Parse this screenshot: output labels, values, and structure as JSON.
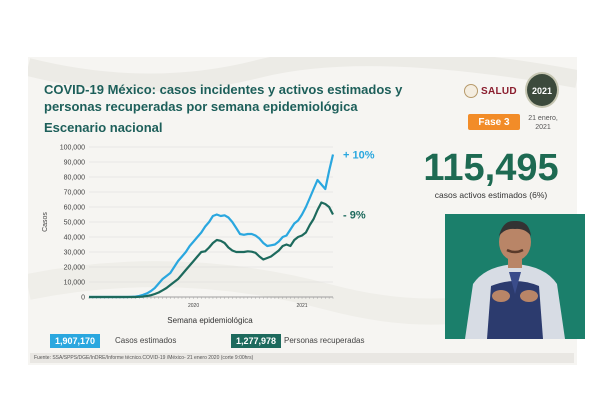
{
  "slide": {
    "title": "COVID-19 México: casos incidentes y activos estimados y personas recuperadas por semana epidemiológica",
    "subtitle": "Escenario nacional",
    "logo_salud": "SALUD",
    "logo_year": "2021",
    "phase_label": "Fase 3",
    "date": "21 enero, 2021",
    "active_cases_number": "115,495",
    "active_cases_caption": "casos activos estimados (6%)",
    "legend_estimated_value": "1,907,170",
    "legend_estimated_label": "Casos estimados",
    "legend_recovered_value": "1,277,978",
    "legend_recovered_label": "Personas recuperadas",
    "footer": "Fuente: SSA/SPPS/DGE/InDRE/Informe técnico.COVID-19 /México- 21 enero 2020 (corte 9:00hrs)"
  },
  "colors": {
    "estimated": "#2aa7df",
    "recovered": "#1d6a5d",
    "title": "#1d5f5a",
    "phase_badge": "#f28c28",
    "big_number": "#1d6a52",
    "presenter_bg": "#1b7f6b"
  },
  "chart_data": {
    "type": "line",
    "ylabel": "Casos",
    "xlabel": "Semana epidemiológica",
    "ylim": [
      0,
      100000
    ],
    "yticks": [
      0,
      10000,
      20000,
      30000,
      40000,
      50000,
      60000,
      70000,
      80000,
      90000,
      100000
    ],
    "ytick_labels": [
      "0",
      "10,000",
      "20,000",
      "30,000",
      "40,000",
      "50,000",
      "60,000",
      "70,000",
      "80,000",
      "90,000",
      "100,000"
    ],
    "x_year_labels": [
      {
        "label": "2020",
        "at_index": 27
      },
      {
        "label": "2021",
        "at_index": 55
      }
    ],
    "grid": true,
    "series": [
      {
        "name": "Casos estimados",
        "change_label": "+ 10%",
        "values": [
          0,
          0,
          0,
          0,
          0,
          0,
          0,
          0,
          0,
          0,
          0,
          100,
          300,
          700,
          1500,
          2500,
          4000,
          6000,
          9000,
          12000,
          14000,
          16000,
          20000,
          24000,
          27000,
          30000,
          34000,
          37000,
          40000,
          43000,
          47000,
          50000,
          54000,
          55000,
          54000,
          54500,
          53000,
          50000,
          46000,
          42000,
          41500,
          42000,
          42000,
          41000,
          39000,
          36000,
          34000,
          34500,
          35000,
          37000,
          40000,
          41000,
          45000,
          49000,
          51000,
          55000,
          60000,
          66000,
          72000,
          78000,
          75000,
          72000,
          84000,
          95000
        ]
      },
      {
        "name": "Personas recuperadas",
        "change_label": "- 9%",
        "values": [
          0,
          0,
          0,
          0,
          0,
          0,
          0,
          0,
          0,
          0,
          0,
          0,
          0,
          100,
          300,
          700,
          1200,
          2000,
          3000,
          4500,
          6000,
          8000,
          10000,
          12000,
          15000,
          18000,
          21000,
          24000,
          27000,
          30000,
          30500,
          33000,
          36000,
          38000,
          37500,
          36000,
          33000,
          31000,
          30000,
          30000,
          30000,
          30500,
          30200,
          29500,
          27000,
          25000,
          26000,
          27000,
          29000,
          31000,
          34000,
          35000,
          34000,
          38000,
          40000,
          41000,
          43000,
          48000,
          52000,
          58000,
          63000,
          62000,
          60000,
          55000
        ]
      }
    ]
  }
}
